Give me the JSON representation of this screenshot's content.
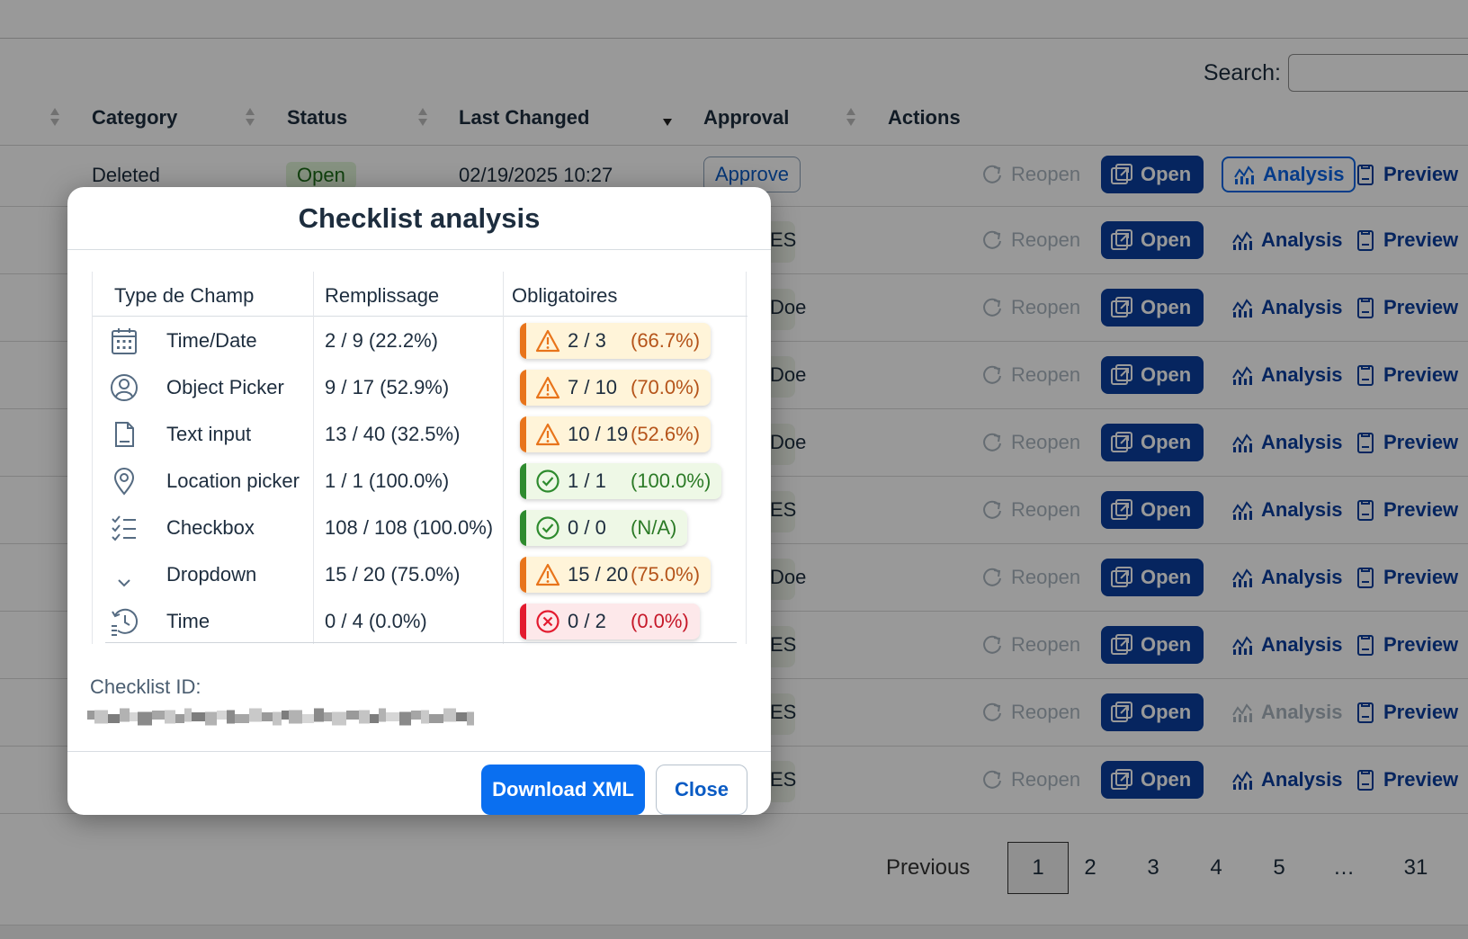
{
  "search": {
    "label": "Search:",
    "placeholder": ""
  },
  "table": {
    "headers": {
      "category": "Category",
      "status": "Status",
      "last_changed": "Last Changed",
      "approval": "Approval",
      "actions": "Actions"
    },
    "first_row": {
      "category": "Deleted",
      "status": "Open",
      "last_changed": "02/19/2025 10:27",
      "approval": "Approve"
    },
    "stubs": [
      "ES",
      "Doe",
      "Doe",
      "Doe",
      "ES",
      "Doe",
      "ES",
      "ES",
      "ES"
    ],
    "actions": {
      "reopen": "Reopen",
      "open": "Open",
      "analysis": "Analysis",
      "preview": "Preview"
    }
  },
  "pagination": {
    "previous": "Previous",
    "pages": [
      "1",
      "2",
      "3",
      "4",
      "5",
      "…",
      "31"
    ],
    "current": "1"
  },
  "modal": {
    "title": "Checklist analysis",
    "columns": {
      "type": "Type de Champ",
      "fill": "Remplissage",
      "mandatory": "Obligatoires"
    },
    "rows": [
      {
        "icon": "calendar-icon",
        "type": "Time/Date",
        "fill": "2 / 9 (22.2%)",
        "status": "warn",
        "count": "2 / 3",
        "pct": "(66.7%)"
      },
      {
        "icon": "user-icon",
        "type": "Object Picker",
        "fill": "9 / 17 (52.9%)",
        "status": "warn",
        "count": "7 / 10",
        "pct": "(70.0%)"
      },
      {
        "icon": "document-icon",
        "type": "Text input",
        "fill": "13 / 40 (32.5%)",
        "status": "warn",
        "count": "10 / 19",
        "pct": "(52.6%)"
      },
      {
        "icon": "location-icon",
        "type": "Location picker",
        "fill": "1 / 1 (100.0%)",
        "status": "ok",
        "count": "1 / 1",
        "pct": "(100.0%)"
      },
      {
        "icon": "checklist-icon",
        "type": "Checkbox",
        "fill": "108 / 108 (100.0%)",
        "status": "ok",
        "count": "0 / 0",
        "pct": "(N/A)"
      },
      {
        "icon": "chevron-down-icon",
        "type": "Dropdown",
        "fill": "15 / 20 (75.0%)",
        "status": "warn",
        "count": "15 / 20",
        "pct": "(75.0%)"
      },
      {
        "icon": "history-icon",
        "type": "Time",
        "fill": "0 / 4 (0.0%)",
        "status": "err",
        "count": "0 / 2",
        "pct": "(0.0%)"
      }
    ],
    "checklist_id_label": "Checklist ID:",
    "download_label": "Download XML",
    "close_label": "Close"
  },
  "colors": {
    "accent": "#0a6ff0",
    "action_blue": "#0a3f9e",
    "warn": "#e8741b",
    "ok": "#2e8b2e",
    "err": "#e31b2f"
  }
}
